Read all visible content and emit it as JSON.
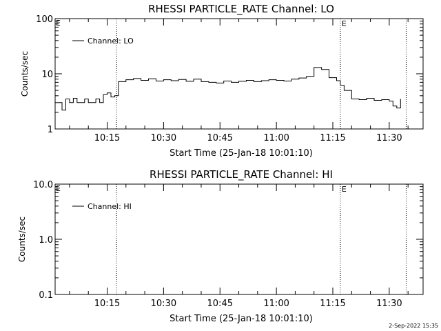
{
  "timestamp": "2-Sep-2022 15:35",
  "chart_data": [
    {
      "type": "line",
      "title": "RHESSI PARTICLE_RATE Channel: LO",
      "xlabel": "Start Time (25-Jan-18 10:01:10)",
      "ylabel": "Counts/sec",
      "y_scale": "log",
      "ylim": [
        1,
        100
      ],
      "yticks": [
        "1",
        "10",
        "100"
      ],
      "xlim": [
        "10:01:10",
        "11:39:00"
      ],
      "xticks": [
        "10:15",
        "10:30",
        "10:45",
        "11:00",
        "11:15",
        "11:30"
      ],
      "legend": "Channel: LO",
      "legend_placement": "top-left",
      "event_lines": [
        {
          "x": "10:17:30",
          "label": ""
        },
        {
          "x": "11:17:00",
          "label": "E"
        },
        {
          "x": "11:34:30",
          "label": ""
        }
      ],
      "axis_marker": "E",
      "series": [
        {
          "name": "Channel: LO",
          "x": [
            "10:02:00",
            "10:03:00",
            "10:04:00",
            "10:05:00",
            "10:06:00",
            "10:07:00",
            "10:08:00",
            "10:09:00",
            "10:10:00",
            "10:11:00",
            "10:12:00",
            "10:13:00",
            "10:14:00",
            "10:15:00",
            "10:16:00",
            "10:17:00",
            "10:18:00",
            "10:20:00",
            "10:22:00",
            "10:24:00",
            "10:26:00",
            "10:28:00",
            "10:30:00",
            "10:32:00",
            "10:34:00",
            "10:36:00",
            "10:38:00",
            "10:40:00",
            "10:42:00",
            "10:44:00",
            "10:46:00",
            "10:48:00",
            "10:50:00",
            "10:52:00",
            "10:54:00",
            "10:56:00",
            "10:58:00",
            "11:00:00",
            "11:02:00",
            "11:04:00",
            "11:06:00",
            "11:08:00",
            "11:10:00",
            "11:12:00",
            "11:14:00",
            "11:16:00",
            "11:17:00",
            "11:18:00",
            "11:20:00",
            "11:22:00",
            "11:24:00",
            "11:26:00",
            "11:28:00",
            "11:30:00",
            "11:31:00",
            "11:32:00",
            "11:33:00"
          ],
          "y": [
            3.0,
            2.2,
            3.5,
            3.0,
            3.6,
            3.0,
            3.0,
            3.5,
            3.0,
            3.0,
            3.5,
            3.0,
            4.2,
            4.5,
            3.8,
            4.0,
            7.2,
            7.8,
            8.2,
            7.6,
            8.1,
            7.4,
            7.8,
            7.5,
            7.9,
            7.3,
            8.0,
            7.2,
            7.0,
            6.8,
            7.4,
            7.0,
            7.3,
            7.6,
            7.2,
            7.5,
            7.8,
            7.6,
            7.4,
            8.0,
            8.4,
            9.0,
            13.0,
            12.0,
            8.5,
            7.5,
            6.2,
            5.0,
            3.5,
            3.4,
            3.6,
            3.3,
            3.4,
            3.2,
            2.6,
            2.4,
            3.5
          ]
        }
      ]
    },
    {
      "type": "line",
      "title": "RHESSI PARTICLE_RATE Channel: HI",
      "xlabel": "Start Time (25-Jan-18 10:01:10)",
      "ylabel": "Counts/sec",
      "y_scale": "log",
      "ylim": [
        0.1,
        10.0
      ],
      "yticks": [
        "0.1",
        "1.0",
        "10.0"
      ],
      "xlim": [
        "10:01:10",
        "11:39:00"
      ],
      "xticks": [
        "10:15",
        "10:30",
        "10:45",
        "11:00",
        "11:15",
        "11:30"
      ],
      "legend": "Channel: HI",
      "legend_placement": "top-left",
      "event_lines": [
        {
          "x": "10:17:30",
          "label": ""
        },
        {
          "x": "11:17:00",
          "label": "E"
        },
        {
          "x": "11:34:30",
          "label": ""
        }
      ],
      "axis_marker": "E",
      "series": [
        {
          "name": "Channel: HI",
          "x": [],
          "y": []
        }
      ]
    }
  ]
}
